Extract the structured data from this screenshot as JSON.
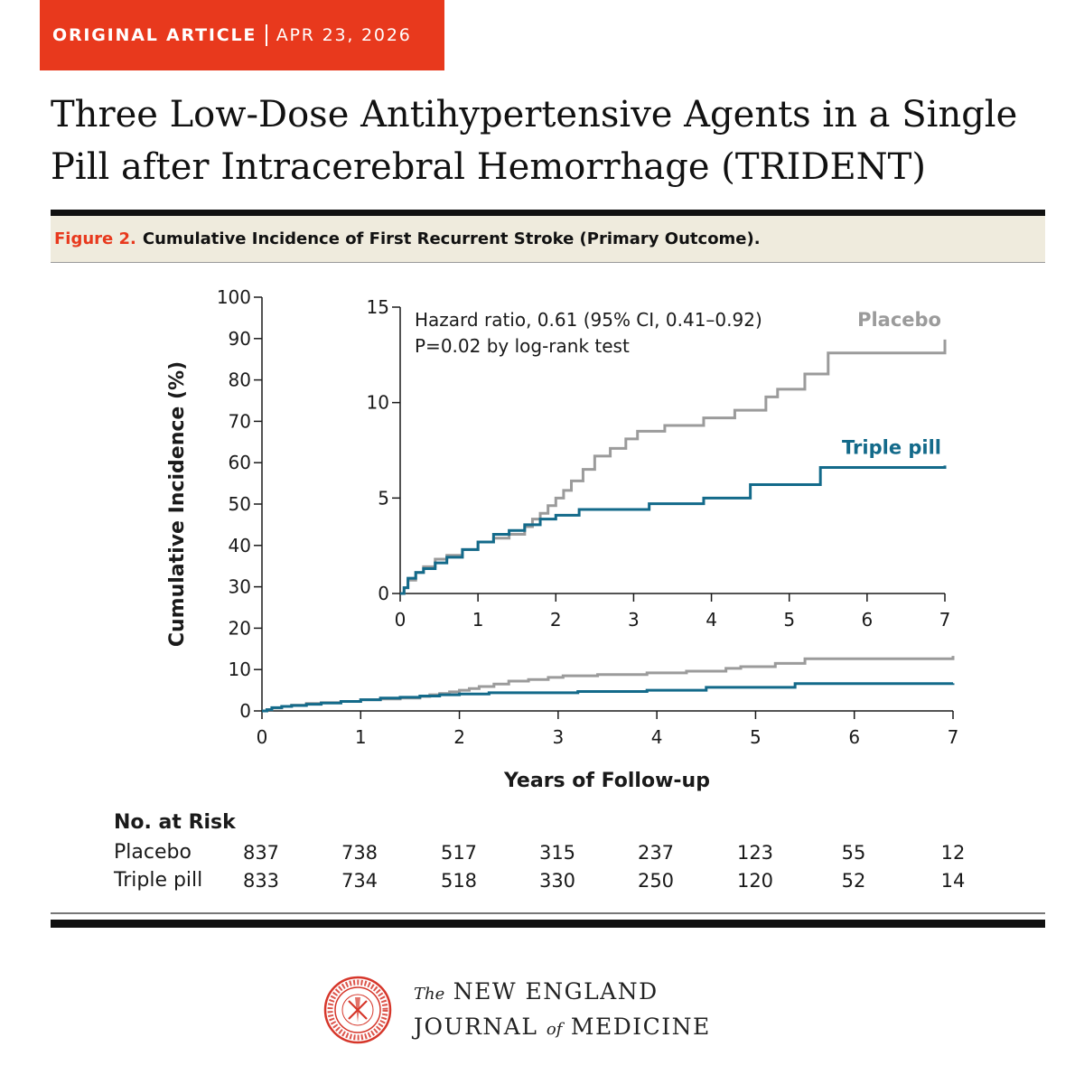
{
  "header": {
    "article_type": "ORIGINAL ARTICLE",
    "date": "APR 23, 2026",
    "title_line1": "Three Low-Dose Antihypertensive Agents in a Single",
    "title_line2": "Pill after Intracerebral Hemorrhage (TRIDENT)"
  },
  "caption": {
    "figure_number": "Figure 2.",
    "figure_title": "Cumulative Incidence of First Recurrent Stroke (Primary Outcome)."
  },
  "colors": {
    "accent": "#e8391d",
    "placebo": "#9b9b9b",
    "triple_pill": "#136a8a",
    "caption_bg": "#efebdd"
  },
  "chart_data": [
    {
      "id": "main",
      "type": "line",
      "step": true,
      "xlabel": "Years of Follow-up",
      "ylabel": "Cumulative Incidence (%)",
      "xlim": [
        0,
        7
      ],
      "ylim": [
        0,
        100
      ],
      "xticks": [
        0,
        1,
        2,
        3,
        4,
        5,
        6,
        7
      ],
      "yticks": [
        0,
        10,
        20,
        30,
        40,
        50,
        60,
        70,
        80,
        90,
        100
      ],
      "grid": false,
      "series": [
        {
          "name": "Placebo",
          "x": [
            0,
            0.05,
            0.1,
            0.2,
            0.3,
            0.45,
            0.6,
            0.8,
            1.0,
            1.2,
            1.4,
            1.6,
            1.7,
            1.8,
            1.9,
            2.0,
            2.1,
            2.2,
            2.35,
            2.5,
            2.7,
            2.9,
            3.05,
            3.4,
            3.9,
            4.3,
            4.7,
            4.85,
            5.2,
            5.5,
            7.0
          ],
          "y": [
            0,
            0.3,
            0.7,
            1.1,
            1.4,
            1.8,
            2.0,
            2.3,
            2.7,
            2.9,
            3.1,
            3.5,
            3.9,
            4.2,
            4.6,
            5.0,
            5.4,
            5.9,
            6.5,
            7.2,
            7.6,
            8.1,
            8.5,
            8.8,
            9.2,
            9.6,
            10.3,
            10.7,
            11.5,
            12.6,
            13.3
          ]
        },
        {
          "name": "Triple pill",
          "x": [
            0,
            0.05,
            0.1,
            0.2,
            0.3,
            0.45,
            0.6,
            0.8,
            1.0,
            1.2,
            1.4,
            1.6,
            1.8,
            2.0,
            2.3,
            3.2,
            3.9,
            4.5,
            5.4,
            7.0
          ],
          "y": [
            0,
            0.3,
            0.8,
            1.1,
            1.3,
            1.6,
            1.9,
            2.3,
            2.7,
            3.1,
            3.3,
            3.6,
            3.9,
            4.1,
            4.4,
            4.7,
            5.0,
            5.7,
            6.6,
            6.7
          ]
        }
      ]
    },
    {
      "id": "inset",
      "type": "line",
      "step": true,
      "xlim": [
        0,
        7
      ],
      "ylim": [
        0,
        15
      ],
      "xticks": [
        0,
        1,
        2,
        3,
        4,
        5,
        6,
        7
      ],
      "yticks": [
        0,
        5,
        10,
        15
      ],
      "annotation_line1": "Hazard ratio, 0.61 (95% CI, 0.41–0.92)",
      "annotation_line2": "P=0.02 by log-rank test",
      "series": [
        {
          "name": "Placebo",
          "x": [
            0,
            0.05,
            0.1,
            0.2,
            0.3,
            0.45,
            0.6,
            0.8,
            1.0,
            1.2,
            1.4,
            1.6,
            1.7,
            1.8,
            1.9,
            2.0,
            2.1,
            2.2,
            2.35,
            2.5,
            2.7,
            2.9,
            3.05,
            3.4,
            3.9,
            4.3,
            4.7,
            4.85,
            5.2,
            5.5,
            7.0
          ],
          "y": [
            0,
            0.3,
            0.7,
            1.1,
            1.4,
            1.8,
            2.0,
            2.3,
            2.7,
            2.9,
            3.1,
            3.5,
            3.9,
            4.2,
            4.6,
            5.0,
            5.4,
            5.9,
            6.5,
            7.2,
            7.6,
            8.1,
            8.5,
            8.8,
            9.2,
            9.6,
            10.3,
            10.7,
            11.5,
            12.6,
            13.3
          ]
        },
        {
          "name": "Triple pill",
          "x": [
            0,
            0.05,
            0.1,
            0.2,
            0.3,
            0.45,
            0.6,
            0.8,
            1.0,
            1.2,
            1.4,
            1.6,
            1.8,
            2.0,
            2.3,
            3.2,
            3.9,
            4.5,
            5.4,
            7.0
          ],
          "y": [
            0,
            0.3,
            0.8,
            1.1,
            1.3,
            1.6,
            1.9,
            2.3,
            2.7,
            3.1,
            3.3,
            3.6,
            3.9,
            4.1,
            4.4,
            4.7,
            5.0,
            5.7,
            6.6,
            6.7
          ]
        }
      ]
    }
  ],
  "risk_table": {
    "title": "No. at Risk",
    "rows": [
      {
        "label": "Placebo",
        "values": [
          837,
          738,
          517,
          315,
          237,
          123,
          55,
          12
        ]
      },
      {
        "label": "Triple pill",
        "values": [
          833,
          734,
          518,
          330,
          250,
          120,
          52,
          14
        ]
      }
    ]
  },
  "footer": {
    "journal_the": "The",
    "journal_name1": "NEW ENGLAND",
    "journal_name2a": "JOURNAL",
    "journal_of": "of",
    "journal_name2b": "MEDICINE",
    "logo_icon": "nejm-seal-icon"
  }
}
